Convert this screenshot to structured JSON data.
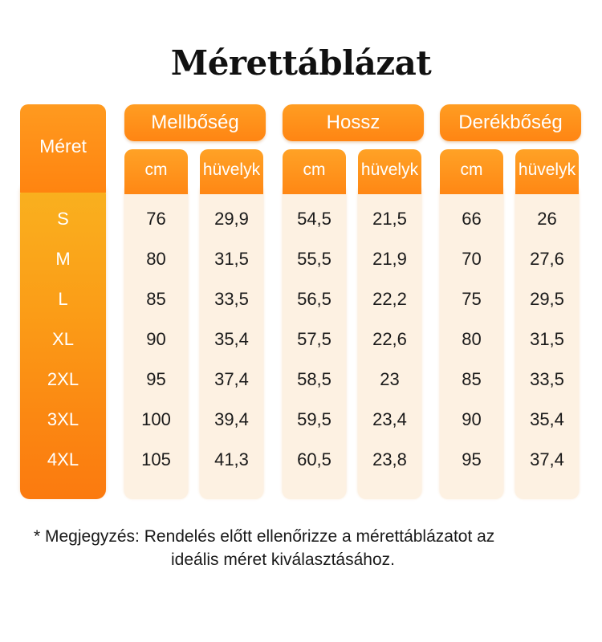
{
  "title": "Mérettáblázat",
  "size_header": "Méret",
  "groups": [
    {
      "label": "Mellbőség",
      "units": [
        "cm",
        "hüvelyk"
      ]
    },
    {
      "label": "Hossz",
      "units": [
        "cm",
        "hüvelyk"
      ]
    },
    {
      "label": "Derékbőség",
      "units": [
        "cm",
        "hüvelyk"
      ]
    }
  ],
  "sizes": [
    "S",
    "M",
    "L",
    "XL",
    "2XL",
    "3XL",
    "4XL"
  ],
  "columns": [
    [
      "76",
      "80",
      "85",
      "90",
      "95",
      "100",
      "105"
    ],
    [
      "29,9",
      "31,5",
      "33,5",
      "35,4",
      "37,4",
      "39,4",
      "41,3"
    ],
    [
      "54,5",
      "55,5",
      "56,5",
      "57,5",
      "58,5",
      "59,5",
      "60,5"
    ],
    [
      "21,5",
      "21,9",
      "22,2",
      "22,6",
      "23",
      "23,4",
      "23,8"
    ],
    [
      "66",
      "70",
      "75",
      "80",
      "85",
      "90",
      "95"
    ],
    [
      "26",
      "27,6",
      "29,5",
      "31,5",
      "33,5",
      "35,4",
      "37,4"
    ]
  ],
  "note": {
    "line1": "* Megjegyzés: Rendelés előtt ellenőrizze a mérettáblázatot az",
    "line2": "ideális méret kiválasztásához."
  },
  "colors": {
    "accent": "#ff8c14",
    "cell_bg": "#fdf1e2"
  }
}
